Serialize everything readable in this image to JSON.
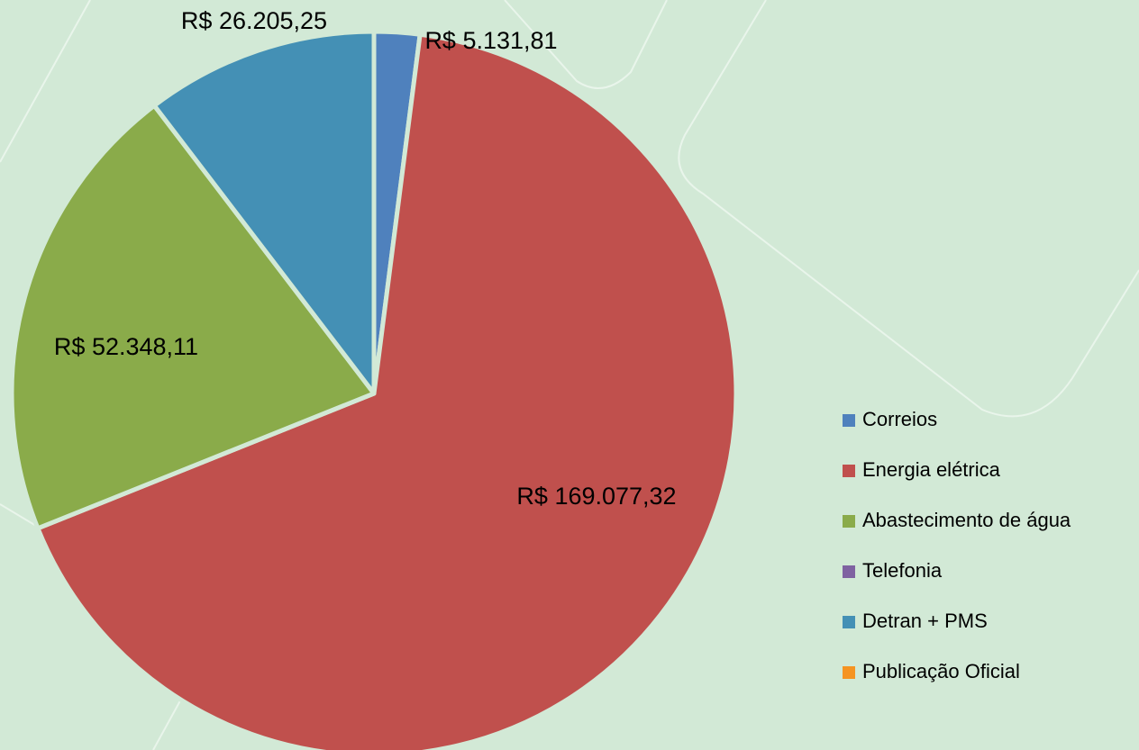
{
  "chart_data": {
    "type": "pie",
    "categories": [
      "Correios",
      "Energia elétrica",
      "Abastecimento de água",
      "Telefonia",
      "Detran + PMS",
      "Publicação Oficial"
    ],
    "values": [
      5131.81,
      169077.32,
      52348.11,
      0,
      26205.25,
      0
    ],
    "value_labels": [
      "R$ 5.131,81",
      "R$ 169.077,32",
      "R$ 52.348,11",
      null,
      "R$ 26.205,25",
      null
    ],
    "colors": [
      "#4f81bd",
      "#c0504d",
      "#8aab4a",
      "#7f62a1",
      "#4490b5",
      "#f59422"
    ],
    "legend": "right"
  }
}
